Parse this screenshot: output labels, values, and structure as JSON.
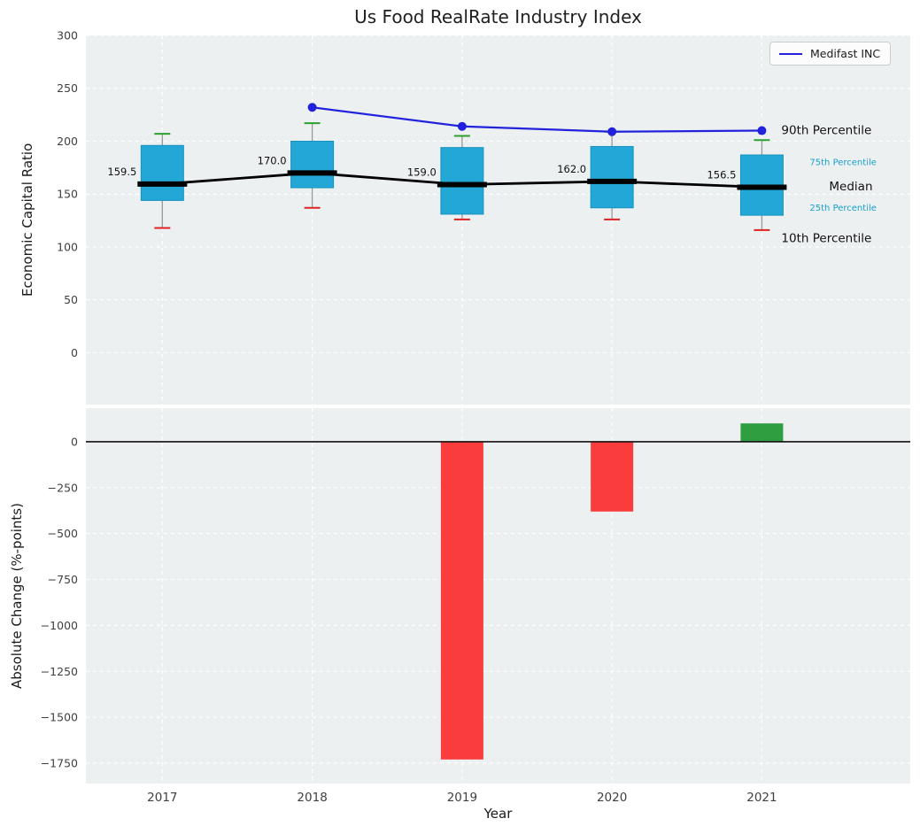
{
  "title": "Us Food RealRate Industry Index",
  "legend": {
    "label": "Medifast INC",
    "line_color": "#2222dd"
  },
  "chart_data": {
    "type": "combo-boxplot-line-bar",
    "x": {
      "years": [
        2017,
        2018,
        2019,
        2020,
        2021
      ],
      "xlim": [
        2016.49,
        2021.99
      ]
    },
    "top_panel": {
      "type": "boxplot+line",
      "ylabel": "Economic Capital Ratio",
      "ylim": [
        -49,
        300
      ],
      "yticks": [
        0,
        50,
        100,
        150,
        200,
        250,
        300
      ],
      "grid": true,
      "legend_position": "upper right",
      "boxplots": [
        {
          "year": 2017,
          "p10": 118,
          "q1": 144,
          "median": 159.5,
          "q3": 196,
          "p90": 207,
          "median_label": "159.5"
        },
        {
          "year": 2018,
          "p10": 137,
          "q1": 156,
          "median": 170.0,
          "q3": 200,
          "p90": 217,
          "median_label": "170.0"
        },
        {
          "year": 2019,
          "p10": 126,
          "q1": 131,
          "median": 159.0,
          "q3": 194,
          "p90": 205,
          "median_label": "159.0"
        },
        {
          "year": 2020,
          "p10": 126,
          "q1": 137,
          "median": 162.0,
          "q3": 195,
          "p90": 209,
          "median_label": "162.0"
        },
        {
          "year": 2021,
          "p10": 116,
          "q1": 130,
          "median": 156.5,
          "q3": 187,
          "p90": 201,
          "median_label": "156.5"
        }
      ],
      "series": [
        {
          "name": "Medifast INC",
          "x": [
            2018,
            2019,
            2020,
            2021
          ],
          "y": [
            232,
            214,
            209,
            210
          ]
        }
      ],
      "annotations": [
        {
          "text": "90th Percentile",
          "value": 210,
          "emphasis": "large",
          "dx": 22
        },
        {
          "text": "75th Percentile",
          "value": 180,
          "emphasis": "small",
          "dx": 54
        },
        {
          "text": "Median",
          "value": 157,
          "emphasis": "large",
          "dx": 76
        },
        {
          "text": "25th Percentile",
          "value": 137,
          "emphasis": "small",
          "dx": 54
        },
        {
          "text": "10th Percentile",
          "value": 108,
          "emphasis": "large",
          "dx": 22
        }
      ]
    },
    "bottom_panel": {
      "type": "bar",
      "ylabel": "Absolute Change (%-points)",
      "xlabel": "Year",
      "ylim": [
        -1861,
        183
      ],
      "yticks": [
        0,
        -250,
        -500,
        -750,
        -1000,
        -1250,
        -1500,
        -1750
      ],
      "grid": true,
      "bars": [
        {
          "year": 2017,
          "value": 0
        },
        {
          "year": 2018,
          "value": 0
        },
        {
          "year": 2019,
          "value": -1730
        },
        {
          "year": 2020,
          "value": -380
        },
        {
          "year": 2021,
          "value": 100
        }
      ]
    },
    "colors": {
      "axes_bg": "#edf0f1",
      "grid": "#ffffff",
      "box_fill": "#23a7d6",
      "box_edge": "#1792bf",
      "median": "#000000",
      "whisker": "#999999",
      "cap_top": "#2ca02c",
      "cap_bottom": "#dd2222",
      "line": "#2222dd",
      "bar_negative": "#fb3c3c",
      "bar_positive": "#2f9e41",
      "annotation_small": "#199fcc",
      "tick": "#404040"
    }
  }
}
